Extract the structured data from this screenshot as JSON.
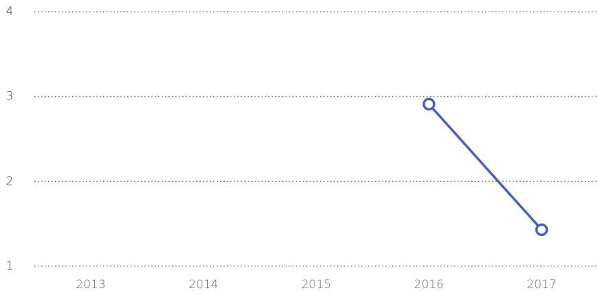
{
  "chart_data": {
    "type": "line",
    "categories": [
      "2013",
      "2014",
      "2015",
      "2016",
      "2017"
    ],
    "values": [
      null,
      null,
      null,
      2.91,
      1.43
    ],
    "color": "#4e5db5",
    "ylim": [
      1,
      4
    ],
    "yticks": [
      1,
      2,
      3,
      4
    ],
    "grid": true
  }
}
